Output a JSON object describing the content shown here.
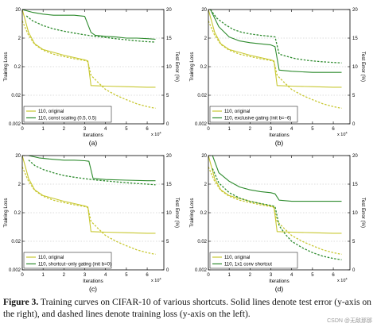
{
  "caption": {
    "label": "Figure 3.",
    "text": " Training curves on CIFAR-10 of various shortcuts. Solid lines denote test error (y-axis on the right), and dashed lines denote training loss (y-axis on the left)."
  },
  "watermark": "CSDN @无敌那那",
  "colors": {
    "original": "#c8c832",
    "variant": "#2e8b2e",
    "axis": "#000000",
    "grid": "#bbbbbb"
  },
  "chart_data": [
    {
      "type": "line",
      "panel_label": "(a)",
      "xlabel": "Iterations",
      "x_exponent": "x 10",
      "x_exponent_power": "4",
      "ylabel_left": "Training Loss",
      "ylabel_right": "Test Error (%)",
      "xlim": [
        0,
        6.8
      ],
      "ylim_left": [
        0.002,
        20
      ],
      "left_scale": "log",
      "ylim_right": [
        0,
        20
      ],
      "x_ticks": [
        "0",
        "1",
        "2",
        "3",
        "4",
        "5",
        "6"
      ],
      "y_ticks_left": [
        "0.002",
        "0.02",
        "0.2",
        "2",
        "20"
      ],
      "y_ticks_right": [
        "0",
        "5",
        "10",
        "15",
        "20"
      ],
      "legend_position": "bottom-left",
      "series": [
        {
          "name": "110, original",
          "style": "dashed",
          "axis": "left",
          "color_key": "original",
          "x": [
            0,
            0.3,
            0.6,
            1.0,
            1.5,
            2.0,
            2.5,
            3.0,
            3.15,
            3.3,
            3.6,
            4.0,
            4.5,
            5.0,
            5.5,
            6.0,
            6.4
          ],
          "y": [
            8,
            2.5,
            1.2,
            0.75,
            0.55,
            0.45,
            0.38,
            0.33,
            0.3,
            0.1,
            0.06,
            0.032,
            0.02,
            0.014,
            0.01,
            0.008,
            0.007
          ]
        },
        {
          "name": "110, original",
          "style": "solid",
          "axis": "right",
          "color_key": "original",
          "x": [
            0,
            0.3,
            0.6,
            1.0,
            1.5,
            2.0,
            2.5,
            3.0,
            3.15,
            3.3,
            4.0,
            5.0,
            6.0,
            6.4
          ],
          "y": [
            20,
            16,
            14,
            13,
            12.5,
            12,
            11.6,
            11.2,
            11,
            6.7,
            6.6,
            6.5,
            6.4,
            6.4
          ]
        },
        {
          "name": "110, const scaling (0.5, 0.5)",
          "style": "dashed",
          "axis": "left",
          "color_key": "variant",
          "x": [
            0.2,
            0.5,
            1.0,
            1.5,
            2.0,
            2.5,
            3.0,
            3.5,
            4.0,
            4.5,
            5.0,
            5.5,
            6.0,
            6.4
          ],
          "y": [
            12,
            8,
            5.5,
            4.2,
            3.5,
            3.0,
            2.6,
            2.3,
            2.1,
            1.9,
            1.75,
            1.6,
            1.5,
            1.45
          ]
        },
        {
          "name": "110, const scaling (0.5, 0.5)",
          "style": "solid",
          "axis": "right",
          "color_key": "variant",
          "x": [
            0,
            0.5,
            1.0,
            1.5,
            2.0,
            2.5,
            3.0,
            3.3,
            3.5,
            4.0,
            4.5,
            5.0,
            5.5,
            6.0,
            6.4
          ],
          "y": [
            20,
            19.5,
            19.2,
            19.0,
            19.0,
            19.0,
            18.8,
            16.0,
            15.5,
            15.3,
            15.2,
            15.0,
            15.0,
            14.9,
            14.8
          ]
        }
      ]
    },
    {
      "type": "line",
      "panel_label": "(b)",
      "xlabel": "Iterations",
      "x_exponent": "x 10",
      "x_exponent_power": "4",
      "ylabel_left": "Training Loss",
      "ylabel_right": "Test Error (%)",
      "xlim": [
        0,
        6.8
      ],
      "ylim_left": [
        0.002,
        20
      ],
      "left_scale": "log",
      "ylim_right": [
        0,
        20
      ],
      "x_ticks": [
        "0",
        "1",
        "2",
        "3",
        "4",
        "5",
        "6"
      ],
      "y_ticks_left": [
        "0.002",
        "0.02",
        "0.2",
        "2",
        "20"
      ],
      "y_ticks_right": [
        "0",
        "5",
        "10",
        "15",
        "20"
      ],
      "legend_position": "bottom-left",
      "series": [
        {
          "name": "110, original",
          "style": "dashed",
          "axis": "left",
          "color_key": "original",
          "x": [
            0,
            0.3,
            0.6,
            1.0,
            1.5,
            2.0,
            2.5,
            3.0,
            3.15,
            3.3,
            3.6,
            4.0,
            4.5,
            5.0,
            5.5,
            6.0,
            6.4
          ],
          "y": [
            8,
            2.5,
            1.2,
            0.75,
            0.55,
            0.45,
            0.38,
            0.33,
            0.3,
            0.1,
            0.06,
            0.032,
            0.02,
            0.014,
            0.01,
            0.008,
            0.007
          ]
        },
        {
          "name": "110, original",
          "style": "solid",
          "axis": "right",
          "color_key": "original",
          "x": [
            0,
            0.3,
            0.6,
            1.0,
            1.5,
            2.0,
            2.5,
            3.0,
            3.15,
            3.3,
            4.0,
            5.0,
            6.0,
            6.4
          ],
          "y": [
            20,
            16,
            14,
            13,
            12.5,
            12,
            11.6,
            11.2,
            11,
            6.7,
            6.6,
            6.5,
            6.4,
            6.4
          ]
        },
        {
          "name": "110, exclusive gating (init b=−6)",
          "style": "dashed",
          "axis": "left",
          "color_key": "variant",
          "x": [
            0.1,
            0.4,
            0.8,
            1.2,
            1.6,
            2.0,
            2.5,
            3.0,
            3.2,
            3.4,
            3.8,
            4.2,
            4.8,
            5.4,
            6.0,
            6.4
          ],
          "y": [
            20,
            10,
            6,
            4,
            3.2,
            2.8,
            2.5,
            2.3,
            2.2,
            0.55,
            0.45,
            0.38,
            0.33,
            0.3,
            0.28,
            0.27
          ]
        },
        {
          "name": "110, exclusive gating (init b=−6)",
          "style": "solid",
          "axis": "right",
          "color_key": "variant",
          "x": [
            0.1,
            0.5,
            1.0,
            1.5,
            2.0,
            2.5,
            3.0,
            3.2,
            3.4,
            4.0,
            5.0,
            6.0,
            6.4
          ],
          "y": [
            20,
            17,
            15.2,
            14.5,
            14.2,
            14.0,
            13.8,
            13.5,
            9.4,
            9.2,
            9.0,
            9.0,
            9.0
          ]
        }
      ]
    },
    {
      "type": "line",
      "panel_label": "(c)",
      "xlabel": "Iterations",
      "x_exponent": "x 10",
      "x_exponent_power": "4",
      "ylabel_left": "Training Loss",
      "ylabel_right": "Test Error (%)",
      "xlim": [
        0,
        6.8
      ],
      "ylim_left": [
        0.002,
        20
      ],
      "left_scale": "log",
      "ylim_right": [
        0,
        20
      ],
      "x_ticks": [
        "0",
        "1",
        "2",
        "3",
        "4",
        "5",
        "6"
      ],
      "y_ticks_left": [
        "0.002",
        "0.02",
        "0.2",
        "2",
        "20"
      ],
      "y_ticks_right": [
        "0",
        "5",
        "10",
        "15",
        "20"
      ],
      "legend_position": "bottom-left",
      "series": [
        {
          "name": "110, original",
          "style": "dashed",
          "axis": "left",
          "color_key": "original",
          "x": [
            0,
            0.3,
            0.6,
            1.0,
            1.5,
            2.0,
            2.5,
            3.0,
            3.15,
            3.3,
            3.6,
            4.0,
            4.5,
            5.0,
            5.5,
            6.0,
            6.4
          ],
          "y": [
            8,
            2.5,
            1.2,
            0.75,
            0.55,
            0.45,
            0.38,
            0.33,
            0.3,
            0.1,
            0.06,
            0.032,
            0.02,
            0.014,
            0.01,
            0.008,
            0.007
          ]
        },
        {
          "name": "110, original",
          "style": "solid",
          "axis": "right",
          "color_key": "original",
          "x": [
            0,
            0.3,
            0.6,
            1.0,
            1.5,
            2.0,
            2.5,
            3.0,
            3.15,
            3.3,
            4.0,
            5.0,
            6.0,
            6.4
          ],
          "y": [
            20,
            16,
            14,
            13,
            12.5,
            12,
            11.6,
            11.2,
            11,
            6.7,
            6.6,
            6.5,
            6.4,
            6.4
          ]
        },
        {
          "name": "110, shortcut−only gating (init b=0)",
          "style": "dashed",
          "axis": "left",
          "color_key": "variant",
          "x": [
            0.3,
            0.6,
            1.0,
            1.5,
            2.0,
            2.5,
            3.0,
            3.5,
            4.0,
            4.5,
            5.0,
            5.5,
            6.0,
            6.4
          ],
          "y": [
            14,
            9,
            6.5,
            5.0,
            4.0,
            3.5,
            3.1,
            2.8,
            2.6,
            2.4,
            2.25,
            2.1,
            2.0,
            1.9
          ]
        },
        {
          "name": "110, shortcut−only gating (init b=0)",
          "style": "solid",
          "axis": "right",
          "color_key": "variant",
          "x": [
            0.3,
            0.8,
            1.3,
            2.0,
            2.5,
            3.0,
            3.2,
            3.4,
            4.0,
            5.0,
            6.0,
            6.4
          ],
          "y": [
            20,
            19.6,
            19.4,
            19.2,
            19.2,
            19.1,
            19.0,
            16.0,
            15.8,
            15.7,
            15.6,
            15.6
          ]
        }
      ]
    },
    {
      "type": "line",
      "panel_label": "(d)",
      "xlabel": "Iterations",
      "x_exponent": "x 10",
      "x_exponent_power": "4",
      "ylabel_left": "Training Loss",
      "ylabel_right": "Test Error (%)",
      "xlim": [
        0,
        6.8
      ],
      "ylim_left": [
        0.002,
        20
      ],
      "left_scale": "log",
      "ylim_right": [
        0,
        20
      ],
      "x_ticks": [
        "0",
        "1",
        "2",
        "3",
        "4",
        "5",
        "6"
      ],
      "y_ticks_left": [
        "0.002",
        "0.02",
        "0.2",
        "2",
        "20"
      ],
      "y_ticks_right": [
        "0",
        "5",
        "10",
        "15",
        "20"
      ],
      "legend_position": "bottom-left",
      "series": [
        {
          "name": "110, original",
          "style": "dashed",
          "axis": "left",
          "color_key": "original",
          "x": [
            0,
            0.3,
            0.6,
            1.0,
            1.5,
            2.0,
            2.5,
            3.0,
            3.15,
            3.3,
            3.6,
            4.0,
            4.5,
            5.0,
            5.5,
            6.0,
            6.4
          ],
          "y": [
            8,
            2.5,
            1.2,
            0.75,
            0.55,
            0.45,
            0.38,
            0.33,
            0.3,
            0.1,
            0.06,
            0.032,
            0.02,
            0.014,
            0.01,
            0.008,
            0.007
          ]
        },
        {
          "name": "110, original",
          "style": "solid",
          "axis": "right",
          "color_key": "original",
          "x": [
            0,
            0.3,
            0.6,
            1.0,
            1.5,
            2.0,
            2.5,
            3.0,
            3.15,
            3.3,
            4.0,
            5.0,
            6.0,
            6.4
          ],
          "y": [
            20,
            16,
            14,
            13,
            12.5,
            12,
            11.6,
            11.2,
            11,
            6.7,
            6.6,
            6.5,
            6.4,
            6.4
          ]
        },
        {
          "name": "110, 1x1 conv shortcut",
          "style": "dashed",
          "axis": "left",
          "color_key": "variant",
          "x": [
            0.2,
            0.5,
            1.0,
            1.5,
            2.0,
            2.5,
            3.0,
            3.2,
            3.4,
            3.7,
            4.0,
            4.5,
            5.0,
            5.5,
            6.0,
            6.4
          ],
          "y": [
            7,
            2.2,
            1.0,
            0.65,
            0.5,
            0.42,
            0.36,
            0.33,
            0.07,
            0.035,
            0.02,
            0.012,
            0.008,
            0.006,
            0.005,
            0.0045
          ]
        },
        {
          "name": "110, 1x1 conv shortcut",
          "style": "solid",
          "axis": "right",
          "color_key": "variant",
          "x": [
            0.2,
            0.5,
            1.0,
            1.5,
            2.0,
            2.5,
            3.0,
            3.2,
            3.4,
            4.0,
            5.0,
            6.0,
            6.4
          ],
          "y": [
            20,
            17,
            15.5,
            14.5,
            14.0,
            13.7,
            13.5,
            13.3,
            12.2,
            12.0,
            12.0,
            12.0,
            12.0
          ]
        }
      ]
    }
  ]
}
